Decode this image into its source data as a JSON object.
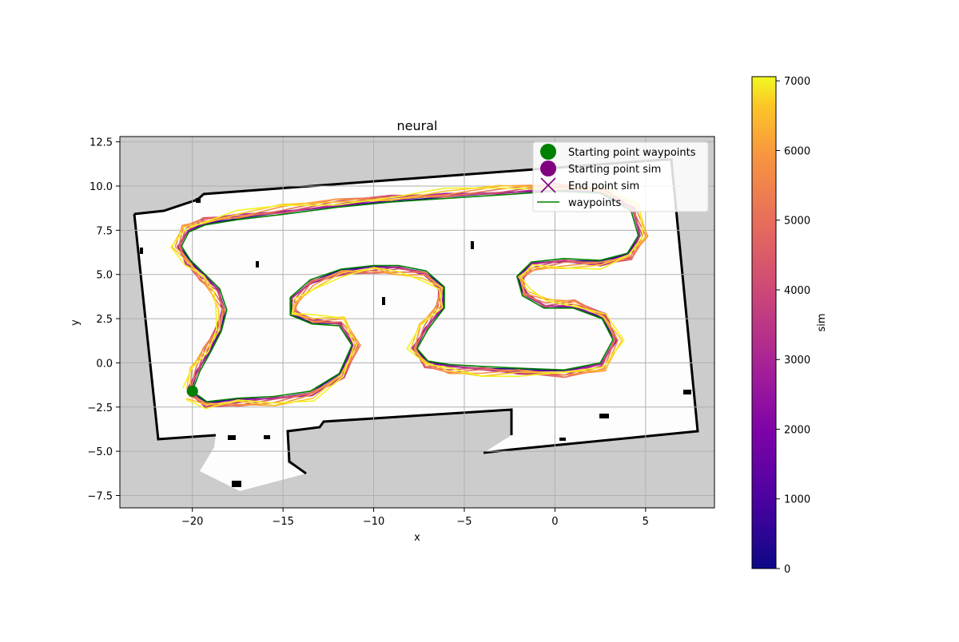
{
  "chart_data": {
    "type": "line",
    "title": "neural",
    "xlabel": "x",
    "ylabel": "y",
    "xlim": [
      -24,
      8.8
    ],
    "ylim": [
      -8.2,
      12.8
    ],
    "xticks": [
      -20,
      -15,
      -10,
      -5,
      0,
      5
    ],
    "yticks": [
      -7.5,
      -5.0,
      -2.5,
      0.0,
      2.5,
      5.0,
      7.5,
      10.0,
      12.5
    ],
    "xtick_labels": [
      "−20",
      "−15",
      "−10",
      "−5",
      "0",
      "5"
    ],
    "ytick_labels": [
      "−7.5",
      "−5.0",
      "−2.5",
      "0.0",
      "2.5",
      "5.0",
      "7.5",
      "10.0",
      "12.5"
    ],
    "grid": true,
    "legend_placement": "top-right",
    "legend": [
      {
        "label": "Starting point waypoints",
        "marker": "circle",
        "color": "#008000"
      },
      {
        "label": "Starting point sim",
        "marker": "circle",
        "color": "#800080"
      },
      {
        "label": "End point sim",
        "marker": "x",
        "color": "#800080"
      },
      {
        "label": "waypoints",
        "marker": "line",
        "color": "#008000"
      }
    ],
    "colorbar": {
      "label": "sim",
      "range": [
        0,
        7060
      ],
      "ticks": [
        0,
        1000,
        2000,
        3000,
        4000,
        5000,
        6000,
        7000
      ],
      "tick_labels": [
        "0",
        "1000",
        "2000",
        "3000",
        "4000",
        "5000",
        "6000",
        "7000"
      ],
      "colormap": "plasma"
    },
    "start_point_waypoints": {
      "x": -20.0,
      "y": -1.6
    },
    "start_point_sim": {
      "x": -20.0,
      "y": -1.6
    },
    "waypoints": {
      "x": [
        -20.0,
        -19.6,
        -19.0,
        -18.4,
        -18.1,
        -18.5,
        -19.3,
        -20.1,
        -20.6,
        -20.2,
        -19.3,
        -17.5,
        -15.0,
        -12.0,
        -9.0,
        -6.0,
        -3.0,
        0.0,
        2.5,
        4.2,
        4.6,
        4.0,
        2.5,
        0.5,
        -1.3,
        -2.1,
        -1.8,
        -0.6,
        1.0,
        2.6,
        3.2,
        2.5,
        0.5,
        -2.0,
        -4.0,
        -5.8,
        -7.0,
        -7.6,
        -7.0,
        -6.1,
        -6.1,
        -7.1,
        -8.6,
        -10.0,
        -11.8,
        -13.5,
        -14.6,
        -14.6,
        -13.4,
        -11.9,
        -11.2,
        -11.9,
        -13.5,
        -15.5,
        -17.5,
        -19.2,
        -20.0
      ],
      "y": [
        -1.6,
        -0.5,
        0.6,
        1.8,
        3.0,
        4.2,
        5.0,
        5.8,
        6.6,
        7.4,
        7.8,
        8.1,
        8.4,
        8.8,
        9.1,
        9.3,
        9.5,
        9.7,
        9.6,
        8.6,
        7.2,
        6.2,
        5.8,
        5.9,
        5.7,
        4.9,
        3.8,
        3.1,
        3.1,
        2.5,
        1.3,
        0.0,
        -0.4,
        -0.3,
        -0.2,
        -0.1,
        0.1,
        0.8,
        1.9,
        3.1,
        4.3,
        5.2,
        5.5,
        5.5,
        5.3,
        4.7,
        3.7,
        2.7,
        2.2,
        2.1,
        1.0,
        -0.6,
        -1.6,
        -1.9,
        -2.0,
        -2.2,
        -1.6
      ]
    },
    "sim_laps": [
      {
        "sim": 200,
        "path_scale": 0.2
      },
      {
        "sim": 1400,
        "path_scale": 0.35
      },
      {
        "sim": 2400,
        "path_scale": 0.5
      },
      {
        "sim": 3400,
        "path_scale": 0.6
      },
      {
        "sim": 4300,
        "path_scale": 0.7
      },
      {
        "sim": 5100,
        "path_scale": 0.78
      },
      {
        "sim": 5900,
        "path_scale": 0.88
      },
      {
        "sim": 6600,
        "path_scale": 0.94
      },
      {
        "sim": 7000,
        "path_scale": 1.0
      }
    ],
    "map_background": {
      "outside": "#cccccc",
      "floor": "#fdfdfd",
      "walls": "#000000"
    }
  }
}
